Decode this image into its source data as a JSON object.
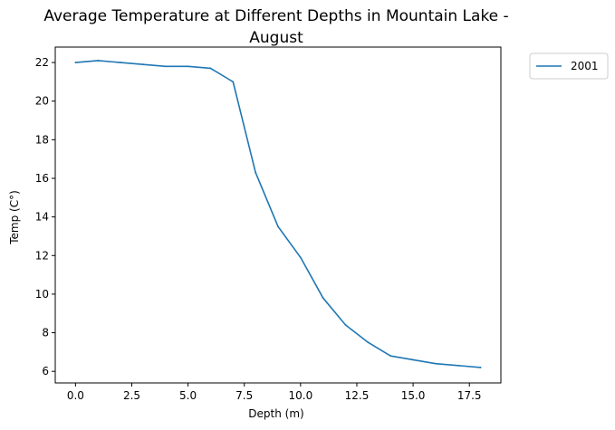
{
  "chart_data": {
    "type": "line",
    "title_line1": "Average Temperature at Different Depths in Mountain Lake -",
    "title_line2": "August",
    "xlabel": "Depth (m)",
    "ylabel": "Temp (C°)",
    "xlim": [
      -0.9,
      18.9
    ],
    "ylim": [
      5.4,
      22.8
    ],
    "xticks": [
      0.0,
      2.5,
      5.0,
      7.5,
      10.0,
      12.5,
      15.0,
      17.5
    ],
    "xtick_labels": [
      "0.0",
      "2.5",
      "5.0",
      "7.5",
      "10.0",
      "12.5",
      "15.0",
      "17.5"
    ],
    "yticks": [
      6,
      8,
      10,
      12,
      14,
      16,
      18,
      20,
      22
    ],
    "ytick_labels": [
      "6",
      "8",
      "10",
      "12",
      "14",
      "16",
      "18",
      "20",
      "22"
    ],
    "grid": false,
    "legend_position": "outside-top-right",
    "series": [
      {
        "name": "2001",
        "color": "#1f77b4",
        "x": [
          0,
          1,
          2,
          3,
          4,
          5,
          6,
          7,
          8,
          9,
          10,
          11,
          12,
          13,
          14,
          15,
          16,
          17,
          18
        ],
        "y": [
          22.0,
          22.1,
          22.0,
          21.9,
          21.8,
          21.8,
          21.7,
          21.0,
          16.3,
          13.5,
          11.9,
          9.8,
          8.4,
          7.5,
          6.8,
          6.6,
          6.4,
          6.3,
          6.2
        ]
      }
    ]
  }
}
